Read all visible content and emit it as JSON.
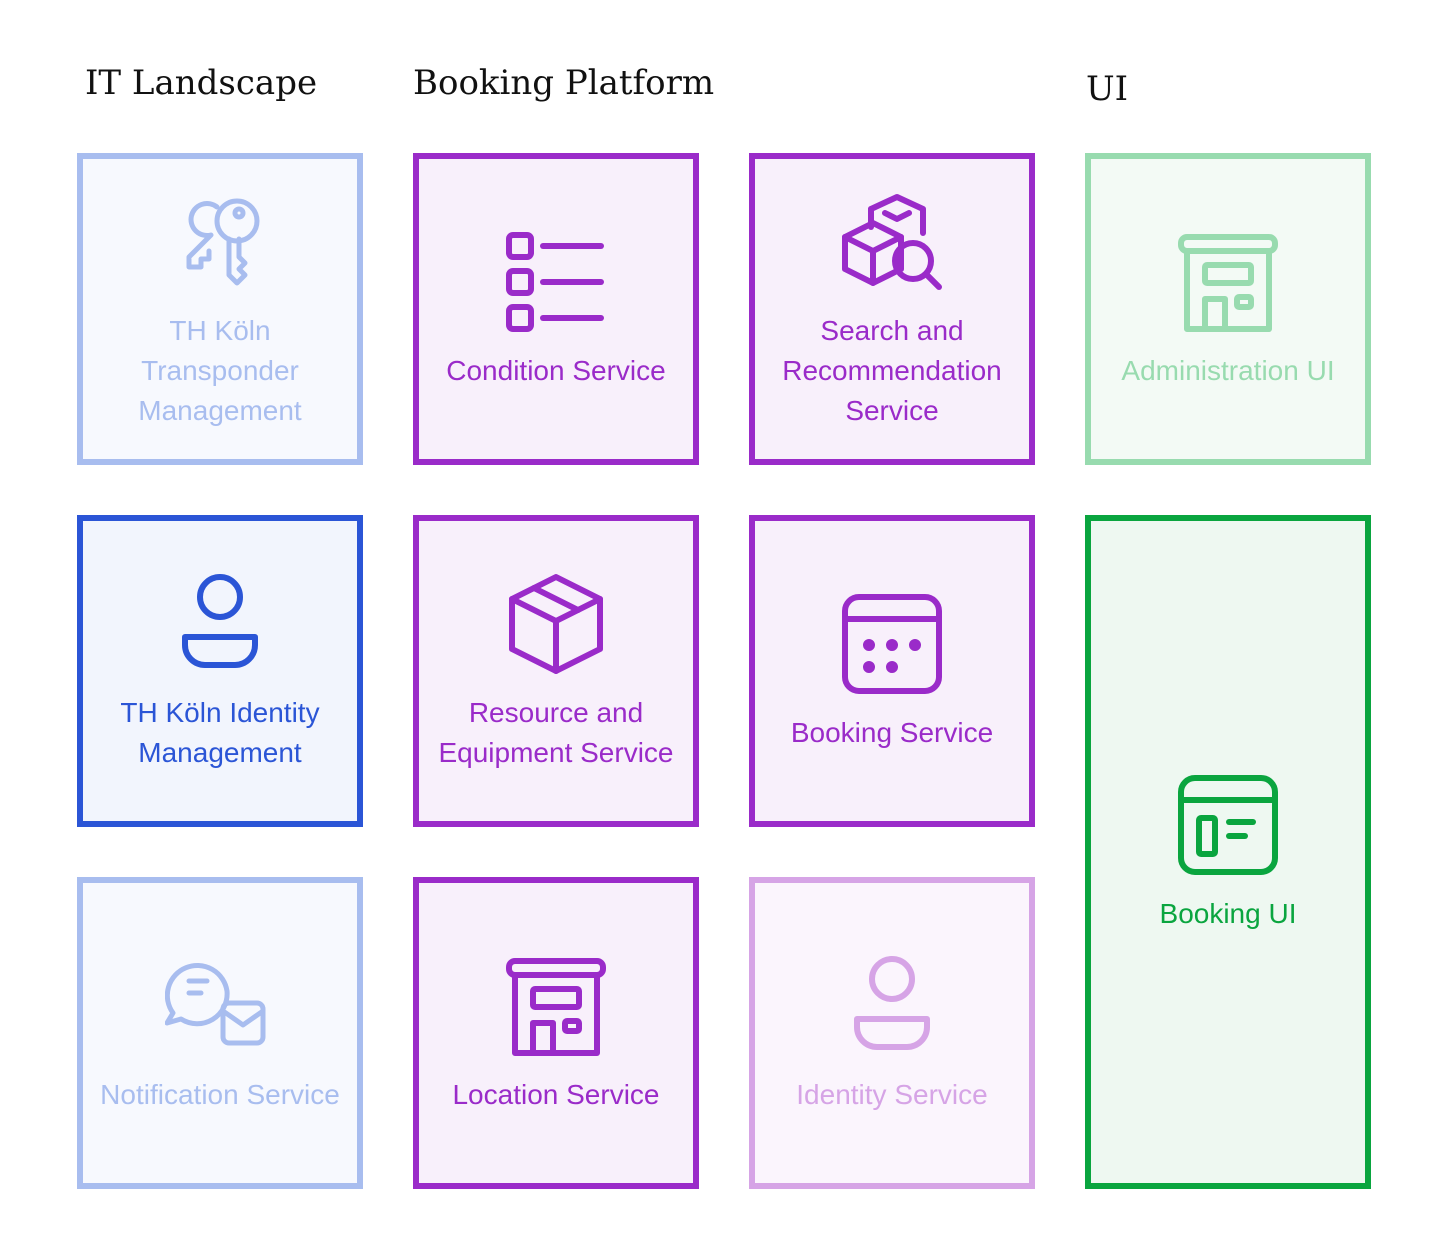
{
  "headings": {
    "it_landscape": "IT Landscape",
    "booking_platform": "Booking Platform",
    "ui": "UI"
  },
  "colors": {
    "blue_dark": "#2b55d6",
    "blue_light": "#a8bdef",
    "blue_bg": "#f2f5fd",
    "purple": "#9a2bc9",
    "purple_light": "#d6a4e6",
    "purple_bg": "#f8f0fb",
    "green_dark": "#0aa53f",
    "green_light": "#98dbaf",
    "green_bg": "#eef8f1"
  },
  "nodes": {
    "transponder": {
      "label": "TH Köln Transponder Management",
      "icon": "keys-icon"
    },
    "identity_mgmt": {
      "label": "TH Köln Identity Management",
      "icon": "user-icon"
    },
    "notification": {
      "label": "Notification Service",
      "icon": "chat-mail-icon"
    },
    "condition": {
      "label": "Condition Service",
      "icon": "checklist-icon"
    },
    "resource": {
      "label": "Resource and Equipment Service",
      "icon": "box-icon"
    },
    "location": {
      "label": "Location Service",
      "icon": "building-icon"
    },
    "search": {
      "label": "Search and Recommendation Service",
      "icon": "box-search-icon"
    },
    "booking": {
      "label": "Booking Service",
      "icon": "calendar-icon"
    },
    "identity_service": {
      "label": "Identity Service",
      "icon": "user-icon"
    },
    "admin_ui": {
      "label": "Administration UI",
      "icon": "building-icon"
    },
    "booking_ui": {
      "label": "Booking UI",
      "icon": "window-icon"
    }
  }
}
